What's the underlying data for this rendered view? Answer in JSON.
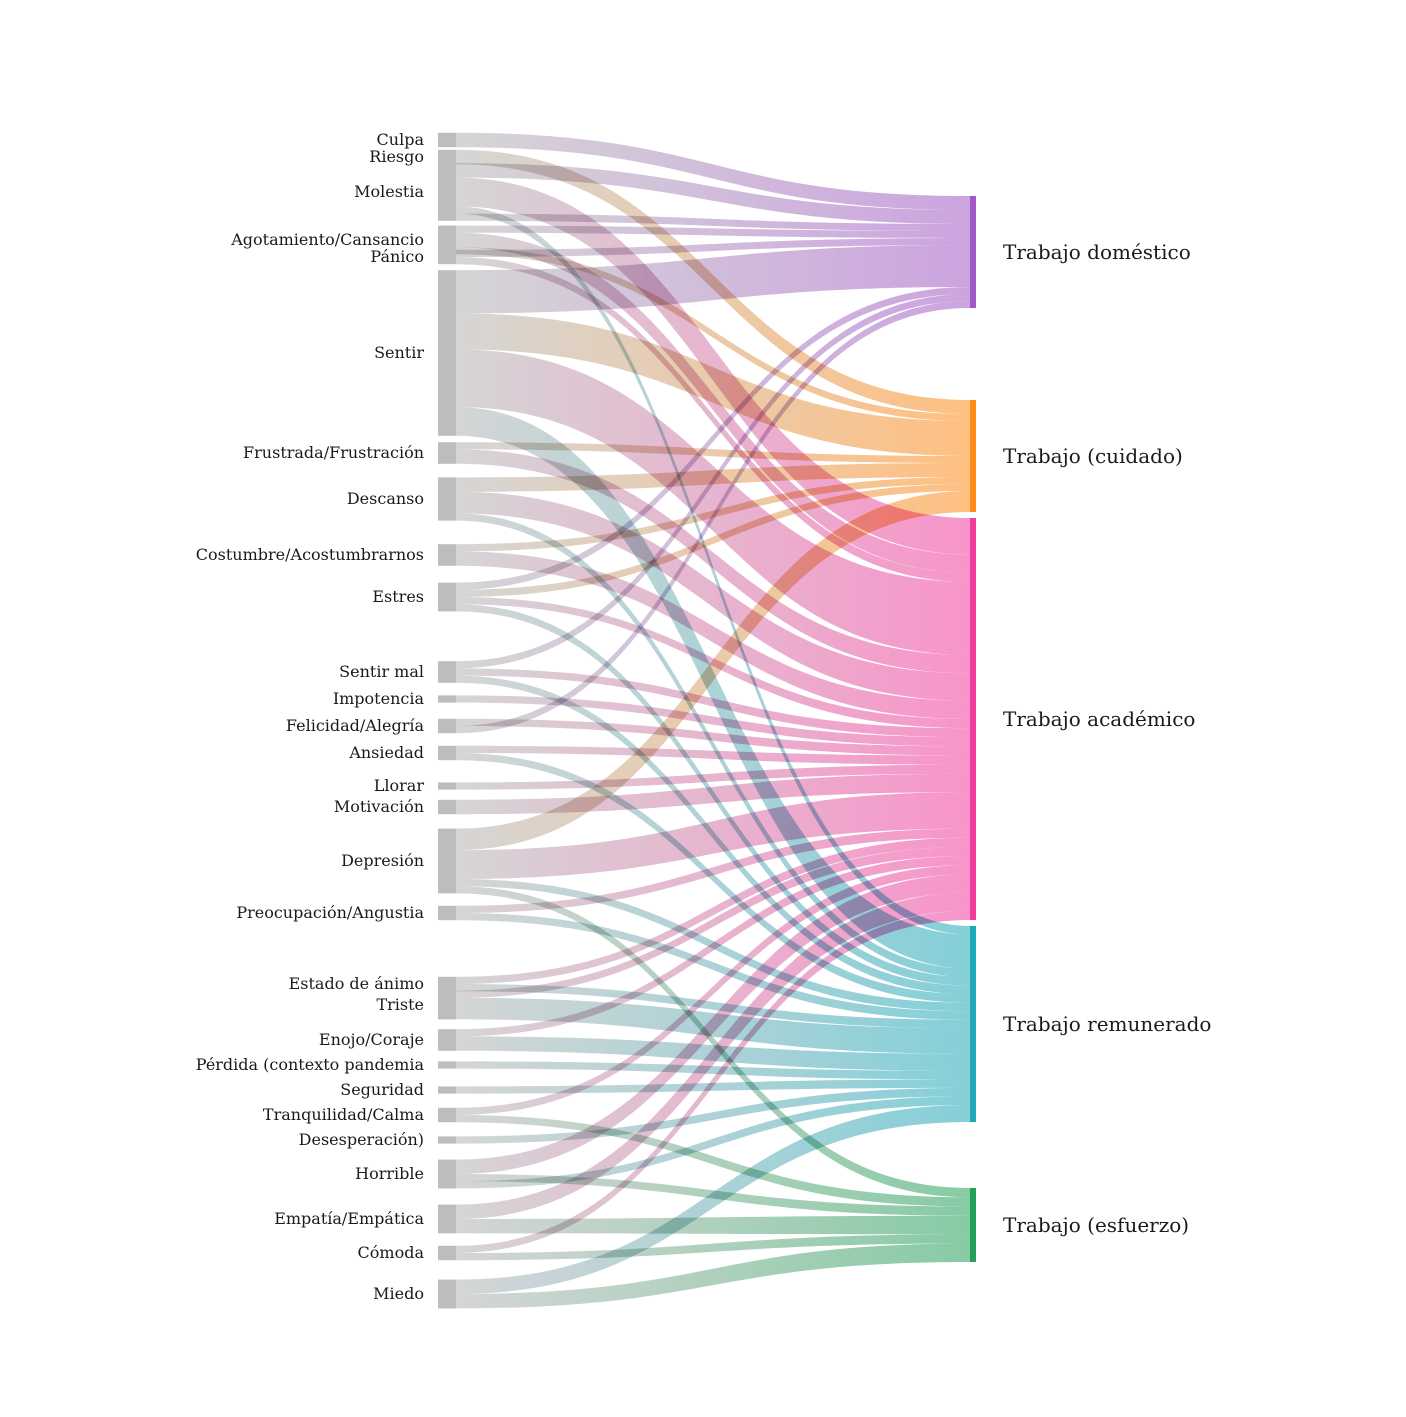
{
  "diagram": {
    "type": "sankey",
    "sources": [
      {
        "id": "culpa",
        "label": "Culpa",
        "flows": [
          {
            "to": "domestico",
            "w": 2
          }
        ]
      },
      {
        "id": "riesgo",
        "label": "Riesgo",
        "flows": [
          {
            "to": "cuidado",
            "w": 2
          }
        ]
      },
      {
        "id": "molestia",
        "label": "Molestia",
        "flows": [
          {
            "to": "domestico",
            "w": 2
          },
          {
            "to": "academico",
            "w": 4
          },
          {
            "to": "remunerado",
            "w": 1
          },
          {
            "to": "domestico",
            "w": 1
          }
        ]
      },
      {
        "id": "agotamiento",
        "label": "Agotamiento/Cansancio",
        "flows": [
          {
            "to": "domestico",
            "w": 1
          },
          {
            "to": "academico",
            "w": 2
          },
          {
            "to": "cuidado",
            "w": 1
          }
        ]
      },
      {
        "id": "panico",
        "label": "Pánico",
        "flows": [
          {
            "to": "domestico",
            "w": 1
          },
          {
            "to": "academico",
            "w": 1
          }
        ]
      },
      {
        "id": "sentir",
        "label": "Sentir",
        "flows": [
          {
            "to": "domestico",
            "w": 6
          },
          {
            "to": "cuidado",
            "w": 5
          },
          {
            "to": "academico",
            "w": 8
          },
          {
            "to": "remunerado",
            "w": 4
          }
        ]
      },
      {
        "id": "frustrada",
        "label": "Frustrada/Frustración",
        "flows": [
          {
            "to": "cuidado",
            "w": 1
          },
          {
            "to": "academico",
            "w": 2
          }
        ]
      },
      {
        "id": "descanso",
        "label": "Descanso",
        "flows": [
          {
            "to": "cuidado",
            "w": 2
          },
          {
            "to": "academico",
            "w": 3
          },
          {
            "to": "remunerado",
            "w": 1
          }
        ]
      },
      {
        "id": "costumbre",
        "label": "Costumbre/Acostumbrarnos",
        "flows": [
          {
            "to": "cuidado",
            "w": 1
          },
          {
            "to": "academico",
            "w": 2
          }
        ]
      },
      {
        "id": "estres",
        "label": "Estres",
        "flows": [
          {
            "to": "domestico",
            "w": 1
          },
          {
            "to": "cuidado",
            "w": 1
          },
          {
            "to": "academico",
            "w": 1
          },
          {
            "to": "remunerado",
            "w": 1
          }
        ]
      },
      {
        "id": "sentirmal",
        "label": "Sentir mal",
        "flows": [
          {
            "to": "domestico",
            "w": 1
          },
          {
            "to": "academico",
            "w": 1
          },
          {
            "to": "remunerado",
            "w": 1
          }
        ]
      },
      {
        "id": "impotencia",
        "label": "Impotencia",
        "flows": [
          {
            "to": "academico",
            "w": 1
          }
        ]
      },
      {
        "id": "felicidad",
        "label": "Felicidad/Alegría",
        "flows": [
          {
            "to": "academico",
            "w": 1
          },
          {
            "to": "domestico",
            "w": 1
          }
        ]
      },
      {
        "id": "ansiedad",
        "label": "Ansiedad",
        "flows": [
          {
            "to": "academico",
            "w": 1
          },
          {
            "to": "remunerado",
            "w": 1
          }
        ]
      },
      {
        "id": "llorar",
        "label": "Llorar",
        "flows": [
          {
            "to": "academico",
            "w": 1
          }
        ]
      },
      {
        "id": "motivacion",
        "label": "Motivación",
        "flows": [
          {
            "to": "academico",
            "w": 2
          }
        ]
      },
      {
        "id": "depresion",
        "label": "Depresión",
        "flows": [
          {
            "to": "cuidado",
            "w": 3
          },
          {
            "to": "academico",
            "w": 4
          },
          {
            "to": "remunerado",
            "w": 1
          },
          {
            "to": "esfuerzo",
            "w": 1
          }
        ]
      },
      {
        "id": "preocupacion",
        "label": "Preocupación/Angustia",
        "flows": [
          {
            "to": "academico",
            "w": 1
          },
          {
            "to": "remunerado",
            "w": 1
          }
        ]
      },
      {
        "id": "estadoanimo",
        "label": "Estado de ánimo",
        "flows": [
          {
            "to": "academico",
            "w": 1
          },
          {
            "to": "remunerado",
            "w": 1
          }
        ]
      },
      {
        "id": "triste",
        "label": "Triste",
        "flows": [
          {
            "to": "academico",
            "w": 1
          },
          {
            "to": "remunerado",
            "w": 3
          }
        ]
      },
      {
        "id": "enojo",
        "label": "Enojo/Coraje",
        "flows": [
          {
            "to": "academico",
            "w": 1
          },
          {
            "to": "remunerado",
            "w": 2
          }
        ]
      },
      {
        "id": "perdida",
        "label": "Pérdida (contexto pandemia",
        "flows": [
          {
            "to": "remunerado",
            "w": 1
          }
        ]
      },
      {
        "id": "seguridad",
        "label": "Seguridad",
        "flows": [
          {
            "to": "remunerado",
            "w": 1
          }
        ]
      },
      {
        "id": "tranquilidad",
        "label": "Tranquilidad/Calma",
        "flows": [
          {
            "to": "academico",
            "w": 1
          },
          {
            "to": "esfuerzo",
            "w": 1
          }
        ]
      },
      {
        "id": "desesperacion",
        "label": "Desesperación)",
        "flows": [
          {
            "to": "remunerado",
            "w": 1
          }
        ]
      },
      {
        "id": "horrible",
        "label": "Horrible",
        "flows": [
          {
            "to": "academico",
            "w": 2
          },
          {
            "to": "esfuerzo",
            "w": 1
          },
          {
            "to": "remunerado",
            "w": 1
          }
        ]
      },
      {
        "id": "empatia",
        "label": "Empatía/Empática",
        "flows": [
          {
            "to": "academico",
            "w": 2
          },
          {
            "to": "esfuerzo",
            "w": 2
          }
        ]
      },
      {
        "id": "comoda",
        "label": "Cómoda",
        "flows": [
          {
            "to": "academico",
            "w": 1
          },
          {
            "to": "esfuerzo",
            "w": 1
          }
        ]
      },
      {
        "id": "miedo",
        "label": "Miedo",
        "flows": [
          {
            "to": "remunerado",
            "w": 2
          },
          {
            "to": "esfuerzo",
            "w": 2
          }
        ]
      }
    ],
    "targets": [
      {
        "id": "domestico",
        "label": "Trabajo doméstico",
        "color": "#a259c6"
      },
      {
        "id": "cuidado",
        "label": "Trabajo (cuidado)",
        "color": "#ff8c1a"
      },
      {
        "id": "academico",
        "label": "Trabajo académico",
        "color": "#f23d9c"
      },
      {
        "id": "remunerado",
        "label": "Trabajo remunerado",
        "color": "#1fa8b8"
      },
      {
        "id": "esfuerzo",
        "label": "Trabajo (esfuerzo)",
        "color": "#24a05a"
      }
    ],
    "source_color": "#b3b3b3"
  }
}
